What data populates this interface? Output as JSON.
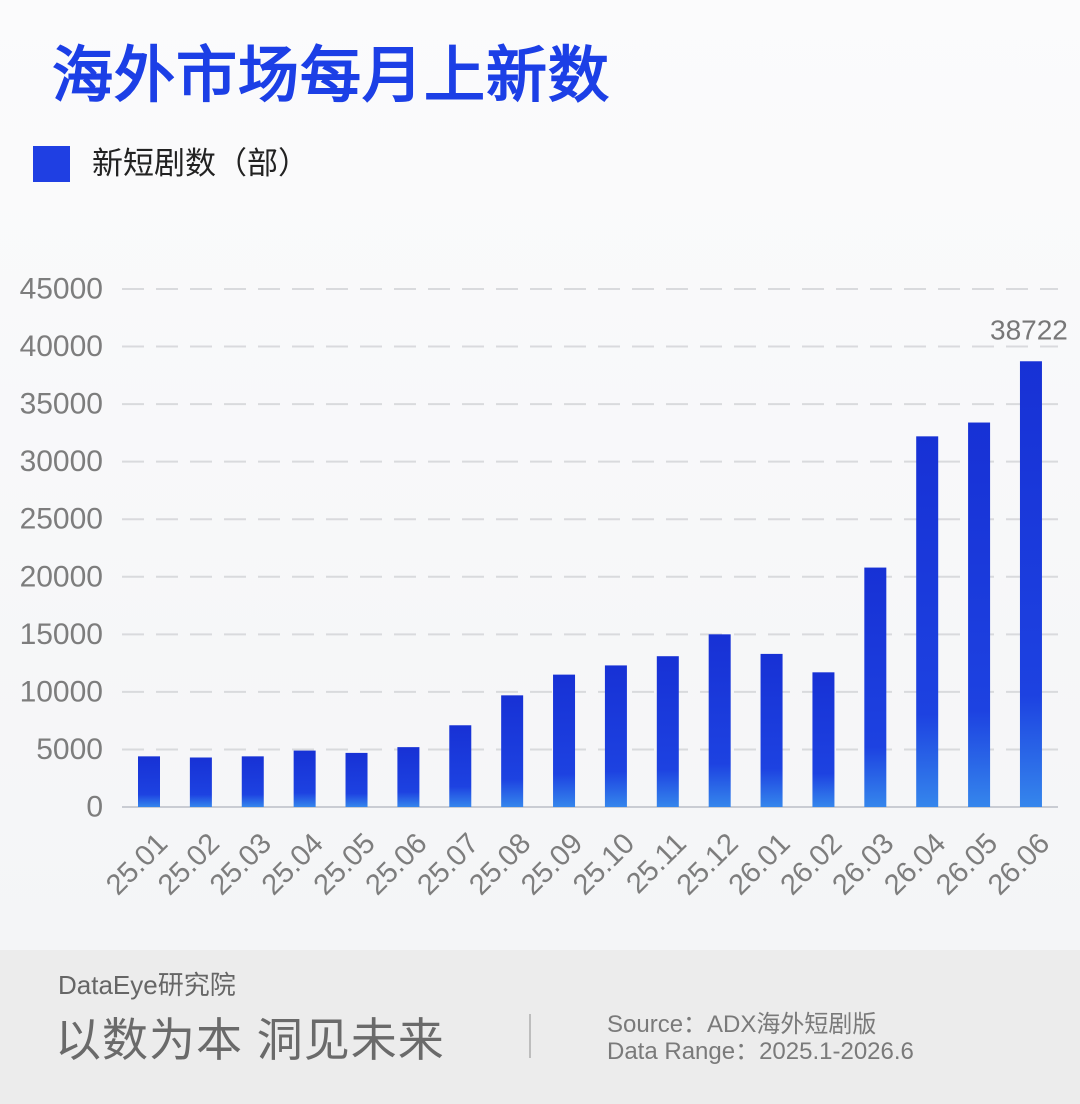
{
  "chart_data": {
    "type": "bar",
    "title": "海外市场每月上新数",
    "categories": [
      "25.01",
      "25.02",
      "25.03",
      "25.04",
      "25.05",
      "25.06",
      "25.07",
      "25.08",
      "25.09",
      "25.10",
      "25.11",
      "25.12",
      "26.01",
      "26.02",
      "26.03",
      "26.04",
      "26.05",
      "26.06"
    ],
    "series": [
      {
        "name": "新短剧数（部）",
        "values": [
          4400,
          4300,
          4400,
          4900,
          4700,
          5200,
          7100,
          9700,
          11500,
          12300,
          13100,
          15000,
          13300,
          11700,
          20800,
          32200,
          33400,
          38722
        ]
      }
    ],
    "ylim": [
      0,
      45000
    ],
    "yticks": [
      0,
      5000,
      10000,
      15000,
      20000,
      25000,
      30000,
      35000,
      40000,
      45000
    ],
    "data_labels": [
      {
        "category": "26.06",
        "value": 38722
      }
    ],
    "grid": true,
    "legend_position": "top-left"
  },
  "footer": {
    "brand": "DataEye研究院",
    "slogan": "以数为本 洞见未来",
    "source": "Source：ADX海外短剧版",
    "data_range": "Data Range：2025.1-2026.6"
  },
  "colors": {
    "title": "#1c3fe6",
    "legend_swatch": "#1f3fe3",
    "bar_top": "#1731d5",
    "bar_mid": "#1d42e1",
    "bar_bottom": "#3586ec"
  }
}
